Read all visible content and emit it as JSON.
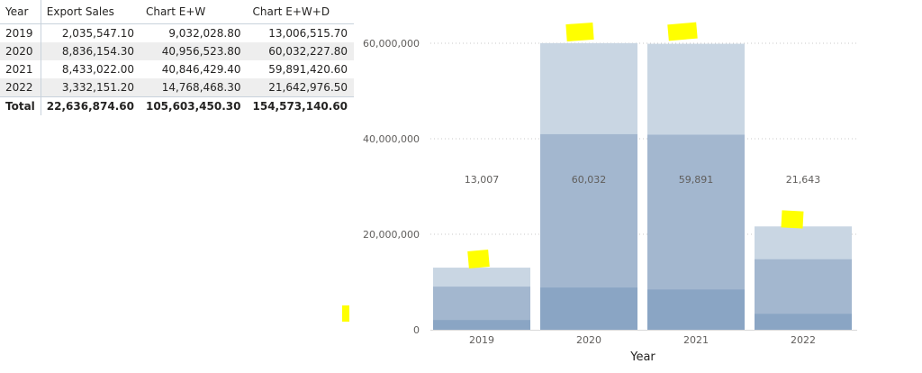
{
  "table": {
    "headers": [
      "Year",
      "Export Sales",
      "Chart E+W",
      "Chart E+W+D"
    ],
    "rows": [
      {
        "year": "2019",
        "export_sales": "2,035,547.10",
        "chart_ew": "9,032,028.80",
        "chart_ewd": "13,006,515.70"
      },
      {
        "year": "2020",
        "export_sales": "8,836,154.30",
        "chart_ew": "40,956,523.80",
        "chart_ewd": "60,032,227.80"
      },
      {
        "year": "2021",
        "export_sales": "8,433,022.00",
        "chart_ew": "40,846,429.40",
        "chart_ewd": "59,891,420.60"
      },
      {
        "year": "2022",
        "export_sales": "3,332,151.20",
        "chart_ew": "14,768,468.30",
        "chart_ewd": "21,642,976.50"
      }
    ],
    "total": {
      "year": "Total",
      "export_sales": "22,636,874.60",
      "chart_ew": "105,603,450.30",
      "chart_ewd": "154,573,140.60"
    }
  },
  "chart_data": {
    "type": "bar",
    "title": "",
    "xlabel": "Year",
    "ylabel": "",
    "categories": [
      "2019",
      "2020",
      "2021",
      "2022"
    ],
    "ylim": [
      0,
      60000000
    ],
    "yticks": [
      0,
      20000000,
      40000000,
      60000000
    ],
    "ytick_labels": [
      "0",
      "20,000,000",
      "40,000,000",
      "60,000,000"
    ],
    "series": [
      {
        "values": [
          13006515.7,
          60032227.8,
          59891420.6,
          21642976.5
        ],
        "color": "#c9d6e3"
      },
      {
        "values": [
          9032028.8,
          40956523.8,
          40846429.4,
          14768468.3
        ],
        "color": "#a3b7cf"
      },
      {
        "values": [
          2035547.1,
          8836154.3,
          8433022.0,
          3332151.2
        ],
        "color": "#8aa5c4"
      }
    ],
    "data_labels": [
      "13,007",
      "60,032",
      "59,891",
      "21,643"
    ],
    "grid": true,
    "colors": {
      "axis_text": "#605e5c",
      "gridline": "#c8c8c8",
      "highlight": "#ffff00"
    }
  }
}
